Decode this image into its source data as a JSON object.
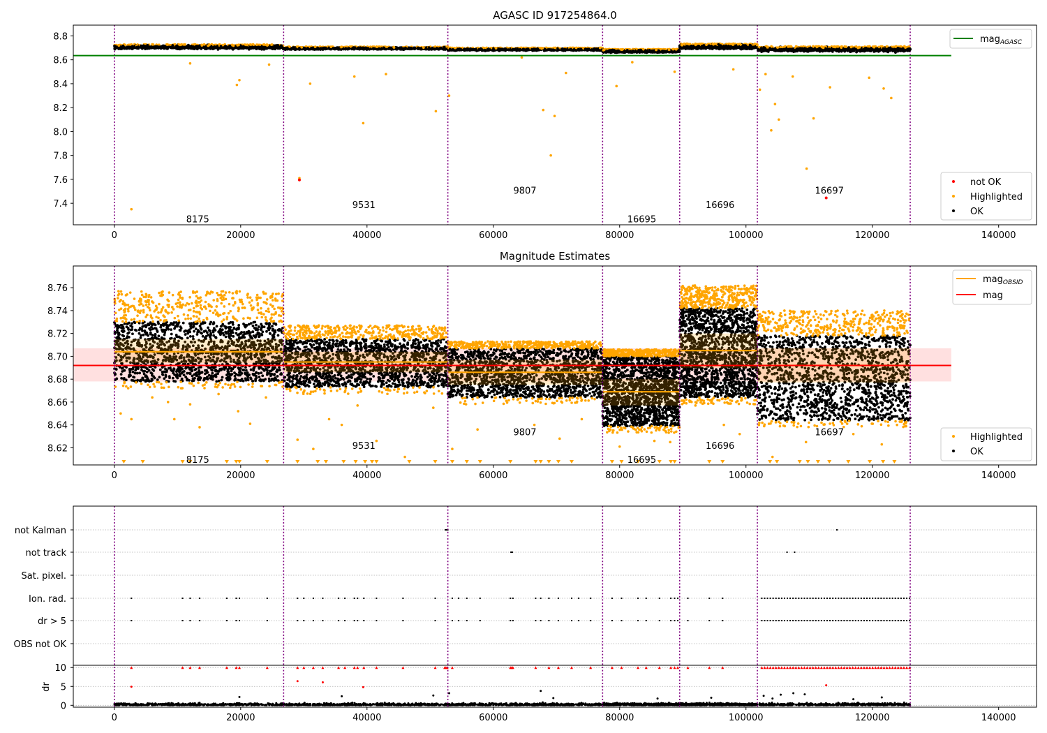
{
  "chart_data": [
    {
      "type": "scatter",
      "title": "AGASC ID 917254864.0",
      "xlabel": "",
      "ylabel": "",
      "xlim": [
        -6500,
        146000
      ],
      "ylim": [
        7.22,
        8.89
      ],
      "xticks": [
        0,
        20000,
        40000,
        60000,
        80000,
        100000,
        120000,
        140000
      ],
      "xtick_labels": [
        "0",
        "20000",
        "40000",
        "60000",
        "80000",
        "100000",
        "120000",
        "140000"
      ],
      "yticks": [
        7.4,
        7.6,
        7.8,
        8.0,
        8.2,
        8.4,
        8.6,
        8.8
      ],
      "ytick_labels": [
        "7.4",
        "7.6",
        "7.8",
        "8.0",
        "8.2",
        "8.4",
        "8.6",
        "8.8"
      ],
      "obsid_boundaries": [
        0,
        26800,
        52800,
        77300,
        89500,
        101800,
        126000
      ],
      "obsid_labels": [
        {
          "text": "8175",
          "x": 13200,
          "y": 7.27
        },
        {
          "text": "9531",
          "x": 39500,
          "y": 7.39
        },
        {
          "text": "9807",
          "x": 65000,
          "y": 7.51
        },
        {
          "text": "16695",
          "x": 83500,
          "y": 7.27
        },
        {
          "text": "16696",
          "x": 95900,
          "y": 7.39
        },
        {
          "text": "16697",
          "x": 113200,
          "y": 7.51
        }
      ],
      "series": [
        {
          "name": "mag_AGASC",
          "kind": "hline",
          "y": 8.635,
          "x_range": [
            -6500,
            132500
          ],
          "color": "#008000"
        },
        {
          "name": "OK",
          "kind": "points",
          "color": "#000000",
          "segments": [
            {
              "x": [
                0,
                26800
              ],
              "y": 8.705,
              "spread": 0.02
            },
            {
              "x": [
                26800,
                52800
              ],
              "y": 8.695,
              "spread": 0.012
            },
            {
              "x": [
                52800,
                77300
              ],
              "y": 8.686,
              "spread": 0.012
            },
            {
              "x": [
                77300,
                89500
              ],
              "y": 8.672,
              "spread": 0.014
            },
            {
              "x": [
                89500,
                101800
              ],
              "y": 8.708,
              "spread": 0.022
            },
            {
              "x": [
                101800,
                126000
              ],
              "y": 8.686,
              "spread": 0.022
            }
          ]
        },
        {
          "name": "Highlighted",
          "kind": "points",
          "color": "#ffa500",
          "points": [
            [
              2700,
              7.35
            ],
            [
              29300,
              7.61
            ],
            [
              31000,
              8.4
            ],
            [
              39400,
              8.07
            ],
            [
              38000,
              8.46
            ],
            [
              50900,
              8.17
            ],
            [
              53000,
              8.3
            ],
            [
              67900,
              8.18
            ],
            [
              69100,
              7.8
            ],
            [
              69700,
              8.13
            ],
            [
              79500,
              8.38
            ],
            [
              82000,
              8.58
            ],
            [
              88700,
              8.5
            ],
            [
              98000,
              8.52
            ],
            [
              102200,
              8.35
            ],
            [
              103100,
              8.48
            ],
            [
              104600,
              8.23
            ],
            [
              105200,
              8.1
            ],
            [
              107400,
              8.46
            ],
            [
              110700,
              8.11
            ],
            [
              109600,
              7.69
            ],
            [
              113300,
              8.37
            ],
            [
              119500,
              8.45
            ],
            [
              121800,
              8.36
            ],
            [
              123000,
              8.28
            ],
            [
              104000,
              8.01
            ],
            [
              43000,
              8.48
            ],
            [
              19800,
              8.43
            ],
            [
              19400,
              8.39
            ],
            [
              64500,
              8.62
            ],
            [
              71500,
              8.49
            ],
            [
              12000,
              8.57
            ],
            [
              24500,
              8.56
            ]
          ]
        },
        {
          "name": "not OK",
          "kind": "points",
          "color": "#ff0000",
          "points": [
            [
              29300,
              7.595
            ],
            [
              112700,
              7.445
            ]
          ]
        }
      ],
      "legends": [
        {
          "entries": [
            {
              "label": "mag",
              "sub": "AGASC",
              "kind": "line",
              "color": "#008000"
            }
          ],
          "placement": "top-right"
        },
        {
          "entries": [
            {
              "label": "not OK",
              "kind": "dot",
              "color": "#ff0000"
            },
            {
              "label": "Highlighted",
              "kind": "dot",
              "color": "#ffa500"
            },
            {
              "label": "OK",
              "kind": "dot",
              "color": "#000000"
            }
          ],
          "placement": "bottom-right"
        }
      ]
    },
    {
      "type": "scatter",
      "title": "Magnitude Estimates",
      "xlabel": "",
      "ylabel": "",
      "xlim": [
        -6500,
        146000
      ],
      "ylim": [
        8.605,
        8.779
      ],
      "xticks": [
        0,
        20000,
        40000,
        60000,
        80000,
        100000,
        120000,
        140000
      ],
      "xtick_labels": [
        "0",
        "20000",
        "40000",
        "60000",
        "80000",
        "100000",
        "120000",
        "140000"
      ],
      "yticks": [
        8.62,
        8.64,
        8.66,
        8.68,
        8.7,
        8.72,
        8.74,
        8.76
      ],
      "ytick_labels": [
        "8.62",
        "8.64",
        "8.66",
        "8.68",
        "8.70",
        "8.72",
        "8.74",
        "8.76"
      ],
      "obsid_boundaries": [
        0,
        26800,
        52800,
        77300,
        89500,
        101800,
        126000
      ],
      "obsid_labels": [
        {
          "text": "8175",
          "x": 13200,
          "y": 8.61
        },
        {
          "text": "9531",
          "x": 39500,
          "y": 8.622
        },
        {
          "text": "9807",
          "x": 65000,
          "y": 8.634
        },
        {
          "text": "16695",
          "x": 83500,
          "y": 8.61
        },
        {
          "text": "16696",
          "x": 95900,
          "y": 8.622
        },
        {
          "text": "16697",
          "x": 113200,
          "y": 8.634
        }
      ],
      "mag": {
        "y": 8.692,
        "band": [
          8.678,
          8.707
        ],
        "x_range": [
          -6500,
          132500
        ],
        "color": "#ff0000"
      },
      "obsid_mag": [
        {
          "x": [
            0,
            26800
          ],
          "y": 8.704,
          "band": [
            8.694,
            8.715
          ],
          "ok": [
            8.678,
            8.73
          ],
          "hl_top": 8.757
        },
        {
          "x": [
            26800,
            52800
          ],
          "y": 8.695,
          "band": [
            8.686,
            8.704
          ],
          "ok": [
            8.673,
            8.715
          ],
          "hl_top": 8.727
        },
        {
          "x": [
            52800,
            77300
          ],
          "y": 8.686,
          "band": [
            8.675,
            8.697
          ],
          "ok": [
            8.664,
            8.707
          ],
          "hl_top": 8.713
        },
        {
          "x": [
            77300,
            89500
          ],
          "y": 8.669,
          "band": [
            8.657,
            8.68
          ],
          "ok": [
            8.639,
            8.7
          ],
          "hl_top": 8.706
        },
        {
          "x": [
            89500,
            101800
          ],
          "y": 8.705,
          "band": [
            8.69,
            8.72
          ],
          "ok": [
            8.664,
            8.742
          ],
          "hl_top": 8.762
        },
        {
          "x": [
            101800,
            126000
          ],
          "y": 8.692,
          "band": [
            8.677,
            8.707
          ],
          "ok": [
            8.644,
            8.718
          ],
          "hl_top": 8.74
        }
      ],
      "outliers": [
        [
          1000,
          8.65
        ],
        [
          2700,
          8.645
        ],
        [
          6000,
          8.664
        ],
        [
          8500,
          8.66
        ],
        [
          9500,
          8.645
        ],
        [
          12000,
          8.658
        ],
        [
          13500,
          8.638
        ],
        [
          16500,
          8.667
        ],
        [
          19600,
          8.652
        ],
        [
          21500,
          8.641
        ],
        [
          24000,
          8.664
        ],
        [
          29000,
          8.627
        ],
        [
          31500,
          8.619
        ],
        [
          34000,
          8.645
        ],
        [
          36000,
          8.64
        ],
        [
          38500,
          8.657
        ],
        [
          41500,
          8.626
        ],
        [
          46000,
          8.612
        ],
        [
          50500,
          8.655
        ],
        [
          53500,
          8.619
        ],
        [
          57500,
          8.636
        ],
        [
          66500,
          8.64
        ],
        [
          70500,
          8.628
        ],
        [
          74000,
          8.645
        ],
        [
          80000,
          8.621
        ],
        [
          85500,
          8.626
        ],
        [
          88000,
          8.625
        ],
        [
          92000,
          8.657
        ],
        [
          96500,
          8.64
        ],
        [
          99000,
          8.632
        ],
        [
          104200,
          8.612
        ],
        [
          109500,
          8.625
        ],
        [
          117000,
          8.632
        ],
        [
          121500,
          8.623
        ]
      ],
      "lower_markers": [
        1500,
        4500,
        10800,
        12000,
        17800,
        19300,
        19800,
        24200,
        29000,
        32200,
        33500,
        36300,
        38200,
        39700,
        40800,
        41500,
        46700,
        50800,
        53500,
        55800,
        57900,
        62700,
        66700,
        67500,
        68800,
        70300,
        72400,
        78800,
        80300,
        82900,
        86300,
        88100,
        88700,
        94200,
        96300,
        103800,
        104900,
        108500,
        109800,
        111400,
        113200,
        116200,
        119600,
        121700,
        123500
      ],
      "legends": [
        {
          "entries": [
            {
              "label": "mag",
              "sub": "OBSID",
              "kind": "line",
              "color": "#ffa500"
            },
            {
              "label": "mag",
              "kind": "line",
              "color": "#ff0000"
            }
          ],
          "placement": "top-right"
        },
        {
          "entries": [
            {
              "label": "Highlighted",
              "kind": "dot",
              "color": "#ffa500"
            },
            {
              "label": "OK",
              "kind": "dot",
              "color": "#000000"
            }
          ],
          "placement": "bottom-right"
        }
      ]
    },
    {
      "type": "scatter",
      "title": "",
      "xlabel": "",
      "ylabel": "",
      "xlim": [
        -6500,
        146000
      ],
      "xticks": [
        0,
        20000,
        40000,
        60000,
        80000,
        100000,
        120000,
        140000
      ],
      "xtick_labels": [
        "0",
        "20000",
        "40000",
        "60000",
        "80000",
        "100000",
        "120000",
        "140000"
      ],
      "obsid_boundaries": [
        0,
        26800,
        52800,
        77300,
        89500,
        101800,
        126000
      ],
      "flag_rows": [
        "not Kalman",
        "not track",
        "Sat. pixel.",
        "Ion. rad.",
        "dr > 5",
        "OBS not OK"
      ],
      "flags": {
        "not Kalman": [
          52400,
          52600,
          52800,
          114400
        ],
        "not track": [
          62800,
          63000,
          106500,
          107700
        ],
        "Sat. pixel.": [],
        "Ion. rad.": [
          2700,
          10800,
          12000,
          13500,
          17800,
          19300,
          19800,
          24200,
          29000,
          30000,
          31500,
          33000,
          35500,
          36500,
          38000,
          38500,
          39500,
          41500,
          45700,
          50800,
          53500,
          54500,
          55800,
          57900,
          62700,
          63100,
          66700,
          67500,
          68800,
          70300,
          72400,
          73500,
          75400,
          78800,
          80300,
          82900,
          84200,
          86300,
          88100,
          88700,
          89200,
          90800,
          94200,
          96300
        ],
        "dr > 5": [
          2700,
          10800,
          12000,
          13500,
          17800,
          19300,
          19800,
          24200,
          29000,
          30000,
          31500,
          33000,
          35500,
          36500,
          38000,
          38500,
          39500,
          41500,
          45700,
          50800,
          53500,
          54500,
          55800,
          57900,
          62700,
          63100,
          66700,
          67500,
          68800,
          70300,
          72400,
          73500,
          75400,
          78800,
          80300,
          82900,
          84200,
          86300,
          88100,
          88700,
          89200,
          90800,
          94200,
          96300
        ],
        "OBS not OK": []
      },
      "dense_flag_range": [
        102500,
        126000
      ],
      "dr": {
        "ylabel": "dr",
        "ylim": [
          -0.5,
          10.6
        ],
        "yticks": [
          0,
          5,
          10
        ],
        "ytick_labels": [
          "0",
          "5",
          "10"
        ],
        "clipped_at": 10,
        "clipped_x": [
          2700,
          10800,
          12000,
          13500,
          17800,
          19300,
          19800,
          24200,
          29000,
          30000,
          31500,
          33000,
          35500,
          36500,
          38000,
          38500,
          39500,
          41500,
          45700,
          50800,
          52300,
          52500,
          52700,
          53500,
          62700,
          62900,
          63100,
          66700,
          68800,
          70300,
          72400,
          75400,
          78800,
          80300,
          82900,
          84200,
          86300,
          88100,
          88700,
          89200,
          90800,
          94200,
          96300
        ],
        "points": [
          [
            2700,
            4.9
          ],
          [
            29000,
            6.4
          ],
          [
            33000,
            6.1
          ],
          [
            39400,
            4.8
          ],
          [
            53000,
            3.2
          ],
          [
            67500,
            3.8
          ],
          [
            105500,
            2.8
          ],
          [
            107500,
            3.2
          ],
          [
            109300,
            2.9
          ],
          [
            112700,
            5.3
          ],
          [
            19800,
            2.2
          ],
          [
            36000,
            2.4
          ],
          [
            50500,
            2.6
          ],
          [
            69500,
            1.9
          ],
          [
            86000,
            1.8
          ],
          [
            94500,
            2.0
          ],
          [
            121500,
            2.1
          ],
          [
            117000,
            1.6
          ],
          [
            102800,
            2.5
          ],
          [
            104200,
            1.8
          ]
        ]
      }
    }
  ]
}
